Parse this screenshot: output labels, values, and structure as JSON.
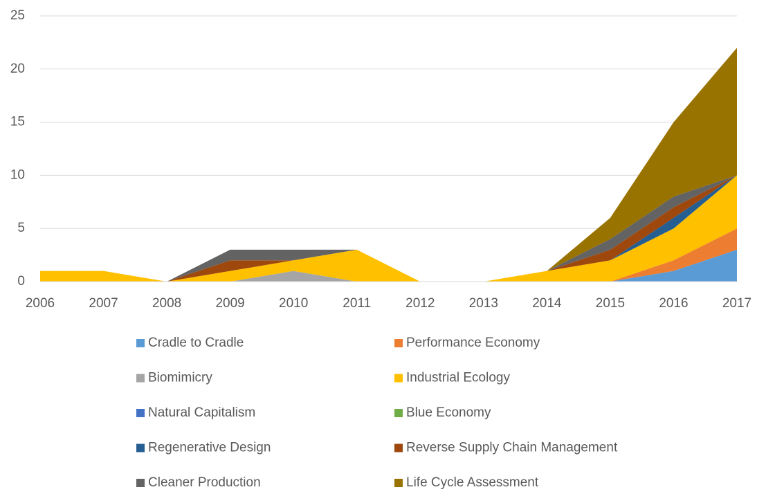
{
  "chart_data": {
    "type": "stacked_area",
    "categories": [
      "2006",
      "2007",
      "2008",
      "2009",
      "2010",
      "2011",
      "2012",
      "2013",
      "2014",
      "2015",
      "2016",
      "2017"
    ],
    "series": [
      {
        "name": "Cradle to Cradle",
        "color": "#5b9bd5",
        "values": [
          0,
          0,
          0,
          0,
          0,
          0,
          0,
          0,
          0,
          0,
          1,
          3
        ]
      },
      {
        "name": "Performance Economy",
        "color": "#ed7d31",
        "values": [
          0,
          0,
          0,
          0,
          0,
          0,
          0,
          0,
          0,
          0,
          1,
          2
        ]
      },
      {
        "name": "Biomimicry",
        "color": "#a5a5a5",
        "values": [
          0,
          0,
          0,
          0,
          1,
          0,
          0,
          0,
          0,
          0,
          0,
          0
        ]
      },
      {
        "name": "Industrial Ecology",
        "color": "#ffc000",
        "values": [
          1,
          1,
          0,
          1,
          1,
          3,
          0,
          0,
          1,
          2,
          3,
          5
        ]
      },
      {
        "name": "Natural Capitalism",
        "color": "#4472c4",
        "values": [
          0,
          0,
          0,
          0,
          0,
          0,
          0,
          0,
          0,
          0,
          0,
          0
        ]
      },
      {
        "name": "Blue Economy",
        "color": "#70ad47",
        "values": [
          0,
          0,
          0,
          0,
          0,
          0,
          0,
          0,
          0,
          0,
          0,
          0
        ]
      },
      {
        "name": "Regenerative Design",
        "color": "#255e91",
        "values": [
          0,
          0,
          0,
          0,
          0,
          0,
          0,
          0,
          0,
          0,
          1,
          0
        ]
      },
      {
        "name": "Reverse Supply Chain Management",
        "color": "#9e480e",
        "values": [
          0,
          0,
          0,
          1,
          0,
          0,
          0,
          0,
          0,
          1,
          1,
          0
        ]
      },
      {
        "name": "Cleaner Production",
        "color": "#636363",
        "values": [
          0,
          0,
          0,
          1,
          1,
          0,
          0,
          0,
          0,
          1,
          1,
          0
        ]
      },
      {
        "name": "Life Cycle Assessment",
        "color": "#997300",
        "values": [
          0,
          0,
          0,
          0,
          0,
          0,
          0,
          0,
          0,
          2,
          7,
          12
        ]
      }
    ],
    "ylim": [
      0,
      25
    ],
    "yticks": [
      0,
      5,
      10,
      15,
      20,
      25
    ],
    "grid": true,
    "legend": "bottom"
  }
}
